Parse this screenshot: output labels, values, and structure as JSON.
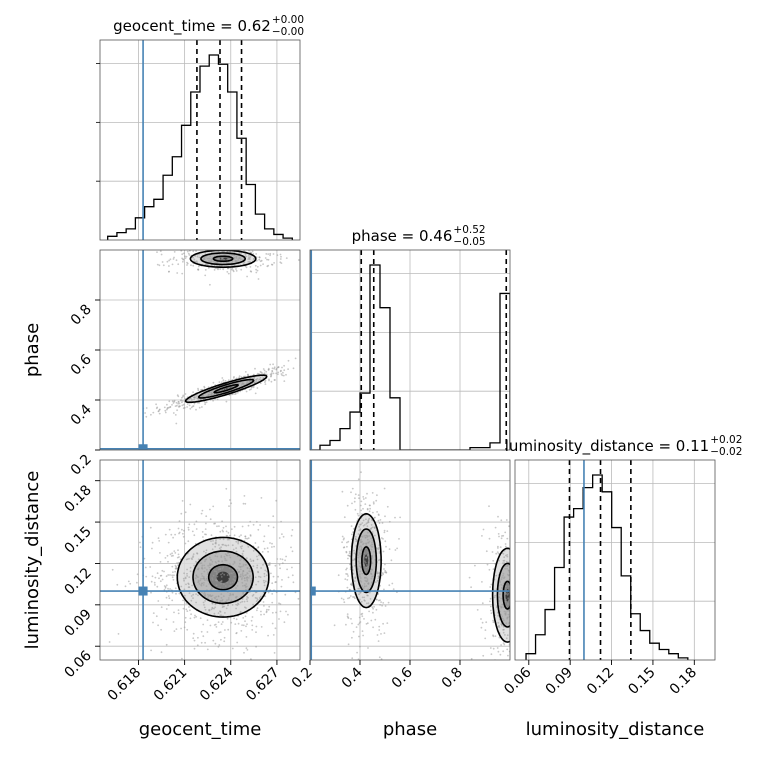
{
  "chart_data": {
    "type": "corner",
    "parameters": [
      "geocent_time",
      "phase",
      "luminosity_distance"
    ],
    "truths": {
      "geocent_time": 0.6183,
      "phase": 0.205,
      "luminosity_distance": 0.1
    },
    "colors": {
      "truth": "#4682b4",
      "hist": "#000000",
      "grid": "#bbbbbb",
      "scatter": "#9a9a9a"
    },
    "grid": true,
    "diagonal": [
      {
        "param": "geocent_time",
        "title_label": "geocent_time = 0.62",
        "title_sup": "+0.00",
        "title_sub": "−0.00",
        "xlim": [
          0.6155,
          0.6285
        ],
        "bin_edges_start": 0.616,
        "bin_width": 0.0006,
        "counts": [
          2,
          4,
          6,
          12,
          18,
          22,
          35,
          45,
          62,
          80,
          94,
          100,
          95,
          80,
          55,
          30,
          14,
          6,
          3,
          1
        ],
        "quantiles": [
          0.6218,
          0.6233,
          0.6247
        ]
      },
      {
        "param": "phase",
        "title_label": "phase = 0.46",
        "title_sup": "+0.52",
        "title_sub": "−0.05",
        "xlim": [
          0.2,
          1.0
        ],
        "bin_edges_start": 0.2,
        "bin_width": 0.04,
        "counts": [
          0,
          2,
          4,
          9,
          16,
          24,
          78,
          60,
          22,
          0,
          0,
          0,
          0,
          0,
          0,
          0,
          1,
          1,
          3,
          66
        ],
        "quantiles": [
          0.405,
          0.455,
          0.985
        ]
      },
      {
        "param": "luminosity_distance",
        "title_label": "luminosity_distance = 0.11",
        "title_sup": "+0.02",
        "title_sub": "−0.02",
        "xlim": [
          0.05,
          0.195
        ],
        "bin_edges_start": 0.058,
        "bin_width": 0.0069,
        "counts": [
          3,
          12,
          24,
          44,
          68,
          72,
          82,
          88,
          80,
          63,
          40,
          22,
          14,
          8,
          5,
          3,
          1
        ],
        "quantiles": [
          0.0895,
          0.112,
          0.134
        ]
      }
    ],
    "axes": {
      "geocent_time": {
        "range": [
          0.6155,
          0.6285
        ],
        "ticks": [
          0.618,
          0.621,
          0.624,
          0.627
        ],
        "ticklabels": [
          "0.618",
          "0.621",
          "0.624",
          "0.627"
        ]
      },
      "phase": {
        "range": [
          0.2,
          1.0
        ],
        "ticks": [
          0.2,
          0.4,
          0.6,
          0.8
        ],
        "ticklabels": [
          "0.2",
          "0.4",
          "0.6",
          "0.8"
        ]
      },
      "luminosity_distance": {
        "range": [
          0.05,
          0.195
        ],
        "ticks": [
          0.06,
          0.09,
          0.12,
          0.15,
          0.18
        ],
        "ticklabels": [
          "0.06",
          "0.09",
          "0.12",
          "0.15",
          "0.18"
        ]
      }
    },
    "scatter_panels": [
      {
        "x": "geocent_time",
        "y": "phase",
        "modes": [
          {
            "cx": 0.6237,
            "cy": 0.445,
            "sx": 0.00155,
            "sy": 0.032,
            "rho": 0.9,
            "count": 520
          },
          {
            "cx": 0.6235,
            "cy": 0.965,
            "sx": 0.00125,
            "sy": 0.02,
            "rho": 0.0,
            "count": 380
          }
        ],
        "contours": [
          {
            "cx": 0.6237,
            "cy": 0.445,
            "sx": 0.00155,
            "sy": 0.032,
            "rho": 0.9,
            "levels": [
              0.5,
              1.15,
              1.7
            ]
          },
          {
            "cx": 0.6235,
            "cy": 0.965,
            "sx": 0.00125,
            "sy": 0.02,
            "rho": 0.0,
            "levels": [
              0.5,
              1.15,
              1.7
            ]
          }
        ]
      },
      {
        "x": "geocent_time",
        "y": "luminosity_distance",
        "modes": [
          {
            "cx": 0.6235,
            "cy": 0.11,
            "sx": 0.0017,
            "sy": 0.0165,
            "rho": 0.0,
            "count": 900
          }
        ],
        "contours": [
          {
            "cx": 0.6235,
            "cy": 0.11,
            "sx": 0.0017,
            "sy": 0.0165,
            "rho": 0.0,
            "levels": [
              0.55,
              1.15,
              1.75
            ]
          }
        ]
      },
      {
        "x": "phase",
        "y": "luminosity_distance",
        "modes": [
          {
            "cx": 0.425,
            "cy": 0.122,
            "sx": 0.035,
            "sy": 0.02,
            "rho": 0.0,
            "count": 480
          },
          {
            "cx": 0.99,
            "cy": 0.097,
            "sx": 0.035,
            "sy": 0.02,
            "rho": 0.0,
            "count": 420
          }
        ],
        "contours": [
          {
            "cx": 0.425,
            "cy": 0.122,
            "sx": 0.035,
            "sy": 0.02,
            "rho": 0.0,
            "levels": [
              0.5,
              1.15,
              1.7
            ]
          },
          {
            "cx": 0.99,
            "cy": 0.097,
            "sx": 0.035,
            "sy": 0.02,
            "rho": 0.0,
            "levels": [
              0.5,
              1.15,
              1.7
            ]
          }
        ]
      }
    ],
    "xlabels": [
      "geocent_time",
      "phase",
      "luminosity_distance"
    ],
    "ylabels": [
      "phase",
      "luminosity_distance"
    ]
  }
}
